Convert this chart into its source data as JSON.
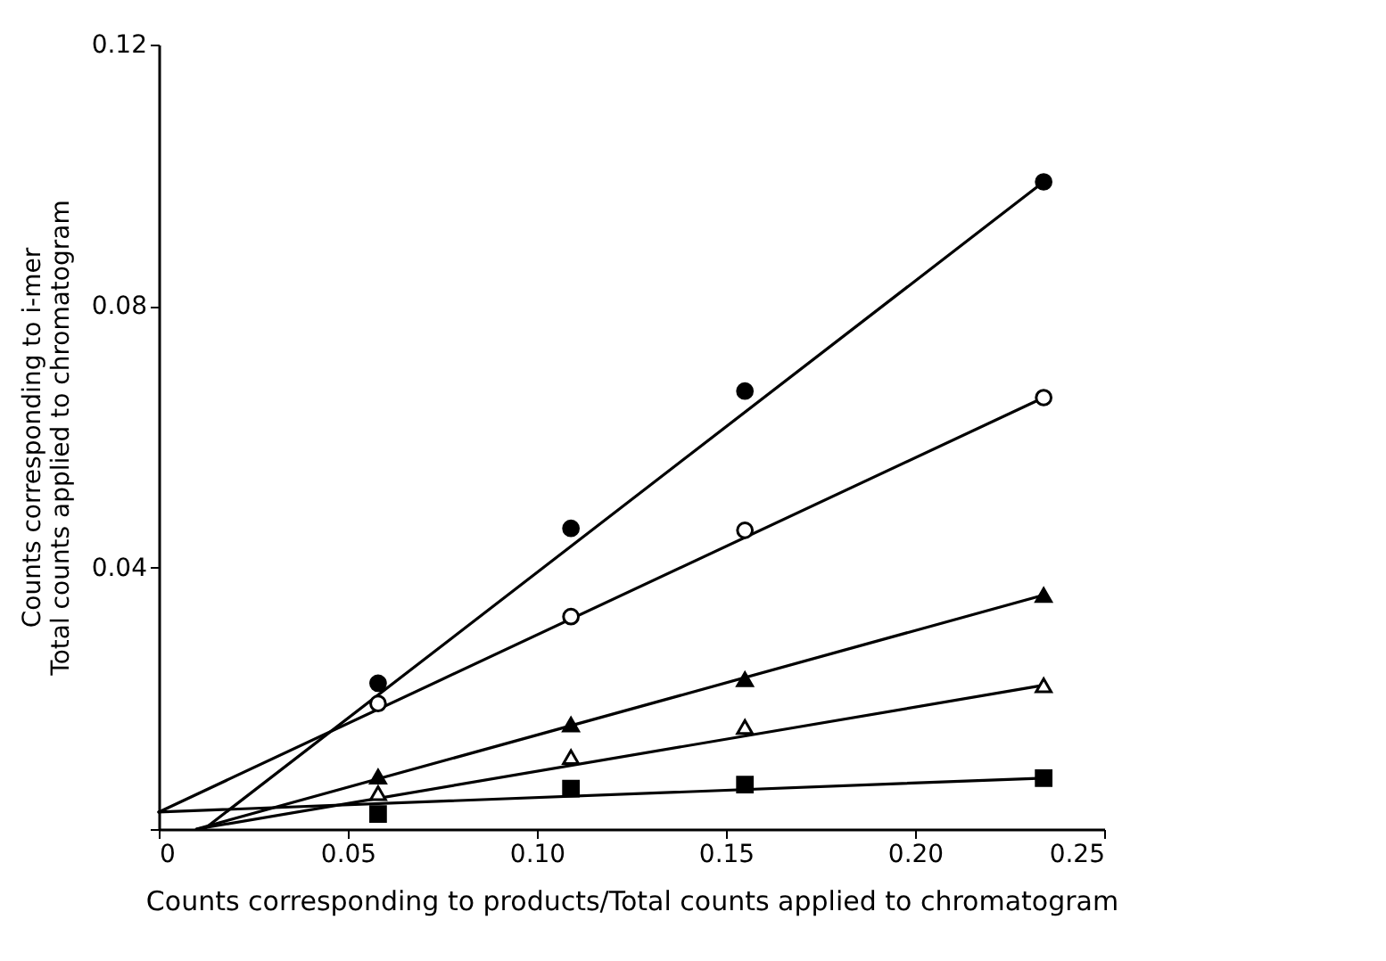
{
  "chart_data": {
    "type": "scatter",
    "xlabel": "Counts corresponding to products/Total counts applied to chromatogram",
    "ylabel": "Counts corresponding to i-mer\nTotal counts applied to chromatogram",
    "x": [
      0.058,
      0.109,
      0.155,
      0.234
    ],
    "xlim": [
      0,
      0.25
    ],
    "xticks": [
      0,
      0.05,
      {
        "value": 0.1,
        "label": "0.10"
      },
      0.15,
      {
        "value": 0.2,
        "label": "0.20"
      },
      0.25
    ],
    "ylim": [
      0,
      0.12
    ],
    "yticks": [
      {
        "value": 0,
        "label": null
      },
      0.04,
      0.08,
      0.12
    ],
    "grid": false,
    "series": [
      {
        "marker": "circle",
        "color": "#000000",
        "values": [
          0.0223,
          0.046,
          0.067,
          0.099
        ]
      },
      {
        "marker": "circle",
        "color": "#ffffff",
        "values": [
          0.0192,
          0.0325,
          0.0457,
          0.066
        ]
      },
      {
        "marker": "triangle",
        "color": "#000000",
        "values": [
          0.008,
          0.016,
          0.0229,
          0.0358
        ]
      },
      {
        "marker": "triangle",
        "color": "#ffffff",
        "values": [
          0.0055,
          0.011,
          0.0156,
          0.022
        ]
      },
      {
        "marker": "square",
        "color": "#000000",
        "values": [
          0.0023,
          0.0062,
          0.0068,
          0.0078
        ]
      },
      {
        "type": "line",
        "color": "#000000",
        "x": [
          0.012,
          0.234
        ],
        "values": [
          0,
          0.099
        ]
      },
      {
        "type": "line",
        "color": "#000000",
        "x": [
          0,
          0.234
        ],
        "values": [
          0.0026,
          0.066
        ]
      },
      {
        "type": "line",
        "color": "#000000",
        "x": [
          0.01,
          0.234
        ],
        "values": [
          0,
          0.0358
        ]
      },
      {
        "type": "line",
        "color": "#000000",
        "x": [
          0.01,
          0.234
        ],
        "values": [
          0,
          0.022
        ]
      },
      {
        "type": "line",
        "color": "#000000",
        "x": [
          0,
          0.234
        ],
        "values": [
          0.0026,
          0.0078
        ]
      }
    ]
  }
}
